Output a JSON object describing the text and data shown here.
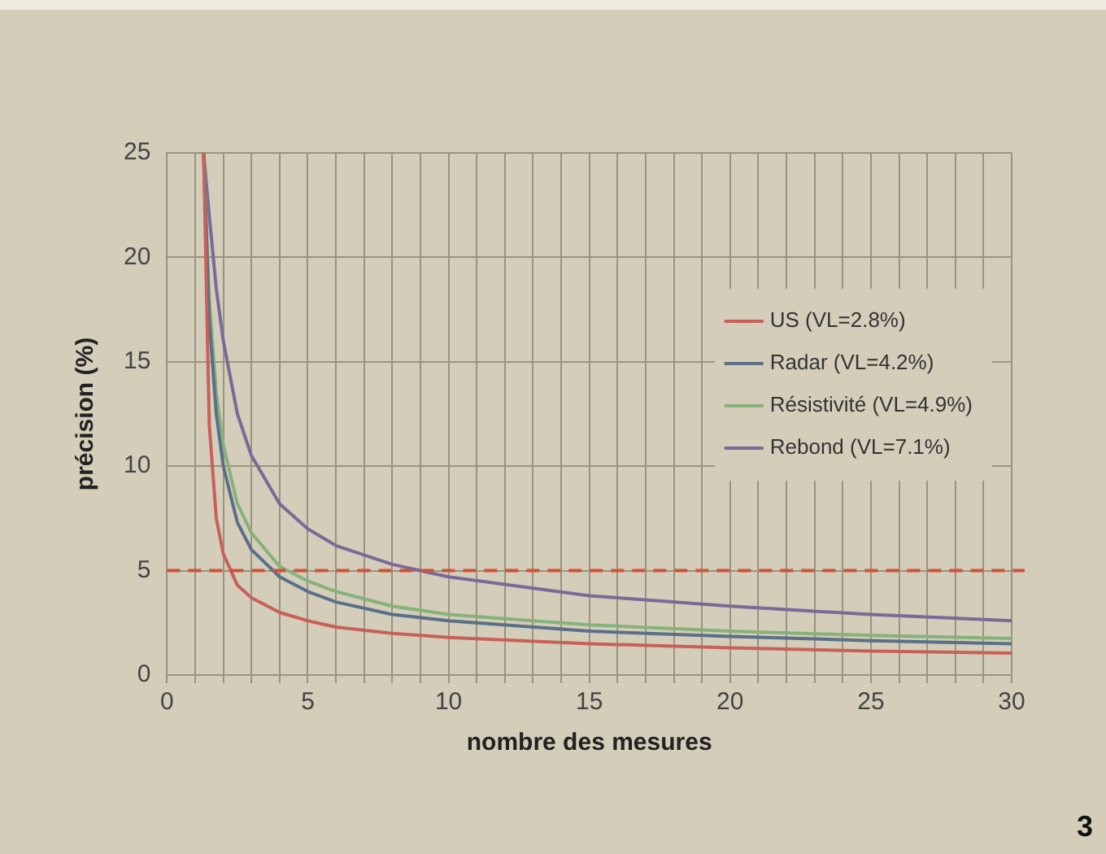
{
  "chart_data": {
    "type": "line",
    "xlabel": "nombre des mesures",
    "ylabel": "précision (%)",
    "xlim": [
      0,
      30
    ],
    "ylim": [
      0,
      25
    ],
    "xticks": [
      0,
      {
        "value": 1,
        "label": null
      },
      {
        "value": 2,
        "label": null
      },
      {
        "value": 3,
        "label": null
      },
      {
        "value": 4,
        "label": null
      },
      5,
      {
        "value": 6,
        "label": null
      },
      {
        "value": 7,
        "label": null
      },
      {
        "value": 8,
        "label": null
      },
      {
        "value": 9,
        "label": null
      },
      10,
      {
        "value": 11,
        "label": null
      },
      {
        "value": 12,
        "label": null
      },
      {
        "value": 13,
        "label": null
      },
      {
        "value": 14,
        "label": null
      },
      15,
      {
        "value": 16,
        "label": null
      },
      {
        "value": 17,
        "label": null
      },
      {
        "value": 18,
        "label": null
      },
      {
        "value": 19,
        "label": null
      },
      20,
      {
        "value": 21,
        "label": null
      },
      {
        "value": 22,
        "label": null
      },
      {
        "value": 23,
        "label": null
      },
      {
        "value": 24,
        "label": null
      },
      25,
      {
        "value": 26,
        "label": null
      },
      {
        "value": 27,
        "label": null
      },
      {
        "value": 28,
        "label": null
      },
      {
        "value": 29,
        "label": null
      },
      30
    ],
    "yticks": [
      0,
      5,
      10,
      15,
      20,
      25
    ],
    "grid": true,
    "legend": "right",
    "marker": "none",
    "line_style": "solid",
    "x": [
      1.3,
      1.5,
      1.75,
      2,
      2.5,
      3,
      4,
      5,
      6,
      8,
      10,
      15,
      20,
      25,
      30
    ],
    "series": [
      {
        "name": "US (VL=2.8%)",
        "color": "#c8605a",
        "values": [
          25,
          12,
          7.5,
          5.8,
          4.3,
          3.7,
          3.0,
          2.6,
          2.3,
          2.0,
          1.8,
          1.5,
          1.3,
          1.15,
          1.05
        ]
      },
      {
        "name": "Radar (VL=4.2%)",
        "color": "#5a7088",
        "values": [
          25,
          17,
          12.5,
          10,
          7.3,
          6,
          4.7,
          4.0,
          3.5,
          2.9,
          2.6,
          2.1,
          1.85,
          1.65,
          1.5
        ]
      },
      {
        "name": "Résistivité (VL=4.9%)",
        "color": "#86b27a",
        "values": [
          25,
          18,
          13.5,
          11,
          8.2,
          6.8,
          5.2,
          4.5,
          4.0,
          3.3,
          2.9,
          2.4,
          2.1,
          1.9,
          1.75
        ]
      },
      {
        "name": "Rebond (VL=7.1%)",
        "color": "#7a6a9a",
        "values": [
          25,
          22,
          18.5,
          16,
          12.5,
          10.5,
          8.2,
          7.0,
          6.2,
          5.3,
          4.7,
          3.8,
          3.3,
          2.9,
          2.6
        ]
      }
    ],
    "ref_lines": [
      {
        "axis": "y",
        "value": 5,
        "color": "#d0503a",
        "line_style": "dashed"
      }
    ],
    "annotations": [
      "3"
    ]
  }
}
